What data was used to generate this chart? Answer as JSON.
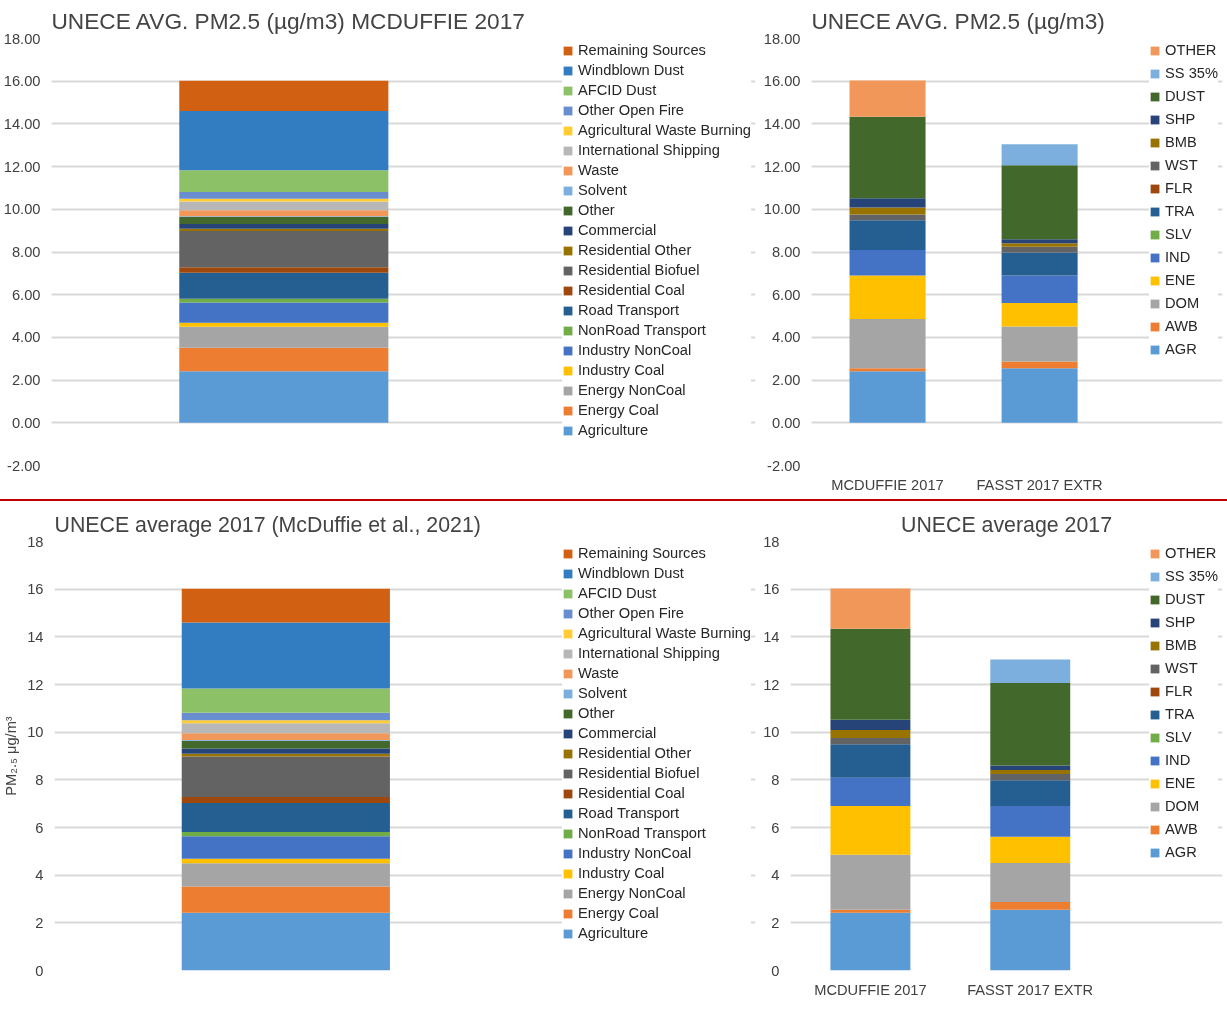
{
  "chart_data": [
    {
      "type": "bar",
      "stacked": true,
      "title": "UNECE AVG. PM2.5 (µg/m3) MCDUFFIE 2017",
      "categories": [
        null
      ],
      "ylim": [
        -2,
        18
      ],
      "yticks": [
        {
          "value": -2,
          "label": "-2.00"
        },
        {
          "value": 0,
          "label": "0.00"
        },
        {
          "value": 2,
          "label": "2.00"
        },
        {
          "value": 4,
          "label": "4.00"
        },
        {
          "value": 6,
          "label": "6.00"
        },
        {
          "value": 8,
          "label": "8.00"
        },
        {
          "value": 10,
          "label": "10.00"
        },
        {
          "value": 12,
          "label": "12.00"
        },
        {
          "value": 14,
          "label": "14.00"
        },
        {
          "value": 16,
          "label": "16.00"
        },
        {
          "value": 18,
          "label": "18.00"
        }
      ],
      "grid": "y",
      "legend": "right",
      "series": [
        {
          "name": "Agriculture",
          "color": "#5b9bd5",
          "values": [
            2.42
          ]
        },
        {
          "name": "Energy Coal",
          "color": "#ed7d31",
          "values": [
            1.1
          ]
        },
        {
          "name": "Energy NonCoal",
          "color": "#a5a5a5",
          "values": [
            0.98
          ]
        },
        {
          "name": "Industry Coal",
          "color": "#ffc000",
          "values": [
            0.19
          ]
        },
        {
          "name": "Industry NonCoal",
          "color": "#4472c4",
          "values": [
            0.94
          ]
        },
        {
          "name": "NonRoad Transport",
          "color": "#70ad47",
          "values": [
            0.18
          ]
        },
        {
          "name": "Road Transport",
          "color": "#255e91",
          "values": [
            1.22
          ]
        },
        {
          "name": "Residential Coal",
          "color": "#9e480e",
          "values": [
            0.25
          ]
        },
        {
          "name": "Residential Biofuel",
          "color": "#636363",
          "values": [
            1.7
          ]
        },
        {
          "name": "Residential Other",
          "color": "#997300",
          "values": [
            0.11
          ]
        },
        {
          "name": "Commercial",
          "color": "#264478",
          "values": [
            0.22
          ]
        },
        {
          "name": "Other",
          "color": "#43682b",
          "values": [
            0.33
          ]
        },
        {
          "name": "Solvent",
          "color": "#7cafdd",
          "values": [
            0.03
          ]
        },
        {
          "name": "Waste",
          "color": "#f1975a",
          "values": [
            0.28
          ]
        },
        {
          "name": "International Shipping",
          "color": "#b7b7b7",
          "values": [
            0.42
          ]
        },
        {
          "name": "Agricultural Waste Burning",
          "color": "#ffcd33",
          "values": [
            0.13
          ]
        },
        {
          "name": "Other Open Fire",
          "color": "#698ed0",
          "values": [
            0.31
          ]
        },
        {
          "name": "AFCID Dust",
          "color": "#8cc168",
          "values": [
            1.02
          ]
        },
        {
          "name": "Windblown Dust",
          "color": "#327dc2",
          "values": [
            2.77
          ]
        },
        {
          "name": "Remaining Sources",
          "color": "#d26012",
          "values": [
            1.42
          ]
        }
      ]
    },
    {
      "type": "bar",
      "stacked": true,
      "title": "UNECE AVG. PM2.5 (µg/m3)",
      "categories": [
        "MCDUFFIE 2017",
        "FASST 2017 EXTR"
      ],
      "ylim": [
        -2,
        18
      ],
      "yticks": [
        {
          "value": -2,
          "label": "-2.00"
        },
        {
          "value": 0,
          "label": "0.00"
        },
        {
          "value": 2,
          "label": "2.00"
        },
        {
          "value": 4,
          "label": "4.00"
        },
        {
          "value": 6,
          "label": "6.00"
        },
        {
          "value": 8,
          "label": "8.00"
        },
        {
          "value": 10,
          "label": "10.00"
        },
        {
          "value": 12,
          "label": "12.00"
        },
        {
          "value": 14,
          "label": "14.00"
        },
        {
          "value": 16,
          "label": "16.00"
        },
        {
          "value": 18,
          "label": "18.00"
        }
      ],
      "grid": "y",
      "legend": "right",
      "series": [
        {
          "name": "AGR",
          "color": "#5b9bd5",
          "values": [
            2.42,
            2.55
          ]
        },
        {
          "name": "AWB",
          "color": "#ed7d31",
          "values": [
            0.13,
            0.32
          ]
        },
        {
          "name": "DOM",
          "color": "#a5a5a5",
          "values": [
            2.31,
            1.64
          ]
        },
        {
          "name": "ENE",
          "color": "#ffc000",
          "values": [
            2.04,
            1.1
          ]
        },
        {
          "name": "IND",
          "color": "#4472c4",
          "values": [
            1.19,
            1.29
          ]
        },
        {
          "name": "SLV",
          "color": "#70ad47",
          "values": [
            0,
            null
          ]
        },
        {
          "name": "TRA",
          "color": "#255e91",
          "values": [
            1.4,
            1.08
          ]
        },
        {
          "name": "FLR",
          "color": "#9e480e",
          "values": [
            0,
            null
          ]
        },
        {
          "name": "WST",
          "color": "#636363",
          "values": [
            0.27,
            0.27
          ]
        },
        {
          "name": "BMB",
          "color": "#997300",
          "values": [
            0.33,
            0.16
          ]
        },
        {
          "name": "SHP",
          "color": "#264478",
          "values": [
            0.43,
            0.19
          ]
        },
        {
          "name": "DUST",
          "color": "#43682b",
          "values": [
            3.82,
            3.46
          ]
        },
        {
          "name": "SS 35%",
          "color": "#7cafdd",
          "values": [
            0,
            0.99
          ]
        },
        {
          "name": "OTHER",
          "color": "#f1975a",
          "values": [
            1.69,
            0
          ]
        }
      ]
    },
    {
      "type": "bar",
      "stacked": true,
      "title": "UNECE average 2017 (McDuffie et al., 2021)",
      "ylabel": "PM₂.₅ μg/m³",
      "categories": [
        null
      ],
      "ylim": [
        0,
        18
      ],
      "yticks": [
        0,
        2,
        4,
        6,
        8,
        10,
        12,
        14,
        16,
        18
      ],
      "grid": "y",
      "legend": "right",
      "series": [
        {
          "name": "Agriculture",
          "color": "#5b9bd5",
          "values": [
            2.42
          ]
        },
        {
          "name": "Energy Coal",
          "color": "#ed7d31",
          "values": [
            1.1
          ]
        },
        {
          "name": "Energy NonCoal",
          "color": "#a5a5a5",
          "values": [
            0.98
          ]
        },
        {
          "name": "Industry Coal",
          "color": "#ffc000",
          "values": [
            0.19
          ]
        },
        {
          "name": "Industry NonCoal",
          "color": "#4472c4",
          "values": [
            0.94
          ]
        },
        {
          "name": "NonRoad Transport",
          "color": "#70ad47",
          "values": [
            0.18
          ]
        },
        {
          "name": "Road Transport",
          "color": "#255e91",
          "values": [
            1.22
          ]
        },
        {
          "name": "Residential Coal",
          "color": "#9e480e",
          "values": [
            0.25
          ]
        },
        {
          "name": "Residential Biofuel",
          "color": "#636363",
          "values": [
            1.7
          ]
        },
        {
          "name": "Residential Other",
          "color": "#997300",
          "values": [
            0.11
          ]
        },
        {
          "name": "Commercial",
          "color": "#264478",
          "values": [
            0.22
          ]
        },
        {
          "name": "Other",
          "color": "#43682b",
          "values": [
            0.33
          ]
        },
        {
          "name": "Solvent",
          "color": "#7cafdd",
          "values": [
            0.03
          ]
        },
        {
          "name": "Waste",
          "color": "#f1975a",
          "values": [
            0.28
          ]
        },
        {
          "name": "International Shipping",
          "color": "#b7b7b7",
          "values": [
            0.42
          ]
        },
        {
          "name": "Agricultural Waste Burning",
          "color": "#ffcd33",
          "values": [
            0.13
          ]
        },
        {
          "name": "Other Open Fire",
          "color": "#698ed0",
          "values": [
            0.31
          ]
        },
        {
          "name": "AFCID Dust",
          "color": "#8cc168",
          "values": [
            1.02
          ]
        },
        {
          "name": "Windblown Dust",
          "color": "#327dc2",
          "values": [
            2.77
          ]
        },
        {
          "name": "Remaining Sources",
          "color": "#d26012",
          "values": [
            1.42
          ]
        }
      ]
    },
    {
      "type": "bar",
      "stacked": true,
      "title": "UNECE average 2017",
      "categories": [
        "MCDUFFIE 2017",
        "FASST 2017 EXTR"
      ],
      "ylim": [
        0,
        18
      ],
      "yticks": [
        0,
        2,
        4,
        6,
        8,
        10,
        12,
        14,
        16,
        18
      ],
      "grid": "y",
      "legend": "right",
      "series": [
        {
          "name": "AGR",
          "color": "#5b9bd5",
          "values": [
            2.42,
            2.55
          ]
        },
        {
          "name": "AWB",
          "color": "#ed7d31",
          "values": [
            0.13,
            0.32
          ]
        },
        {
          "name": "DOM",
          "color": "#a5a5a5",
          "values": [
            2.31,
            1.64
          ]
        },
        {
          "name": "ENE",
          "color": "#ffc000",
          "values": [
            2.04,
            1.1
          ]
        },
        {
          "name": "IND",
          "color": "#4472c4",
          "values": [
            1.19,
            1.29
          ]
        },
        {
          "name": "SLV",
          "color": "#70ad47",
          "values": [
            0,
            null
          ]
        },
        {
          "name": "TRA",
          "color": "#255e91",
          "values": [
            1.4,
            1.08
          ]
        },
        {
          "name": "FLR",
          "color": "#9e480e",
          "values": [
            0,
            null
          ]
        },
        {
          "name": "WST",
          "color": "#636363",
          "values": [
            0.27,
            0.27
          ]
        },
        {
          "name": "BMB",
          "color": "#997300",
          "values": [
            0.33,
            0.16
          ]
        },
        {
          "name": "SHP",
          "color": "#264478",
          "values": [
            0.43,
            0.19
          ]
        },
        {
          "name": "DUST",
          "color": "#43682b",
          "values": [
            3.82,
            3.46
          ]
        },
        {
          "name": "SS 35%",
          "color": "#7cafdd",
          "values": [
            0,
            0.99
          ]
        },
        {
          "name": "OTHER",
          "color": "#f1975a",
          "values": [
            1.69,
            0
          ]
        }
      ]
    }
  ]
}
